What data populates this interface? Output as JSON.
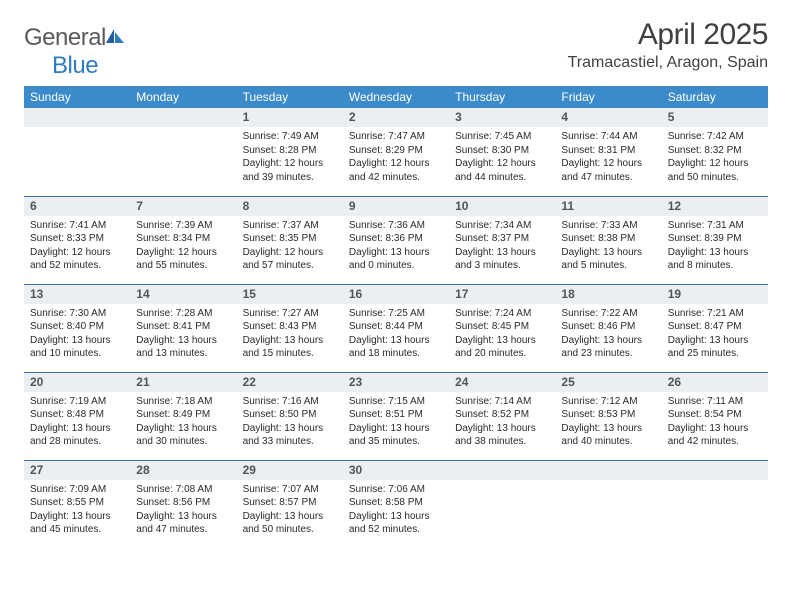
{
  "logo": {
    "word1": "General",
    "word2": "Blue"
  },
  "title": "April 2025",
  "location": "Tramacastiel, Aragon, Spain",
  "colors": {
    "header_bg": "#3b8bca",
    "header_text": "#ffffff",
    "daynum_bg": "#eceff1",
    "rule": "#2f6ea8",
    "logo_gray": "#5a5a5a",
    "logo_blue": "#2f7bbf"
  },
  "day_labels": [
    "Sunday",
    "Monday",
    "Tuesday",
    "Wednesday",
    "Thursday",
    "Friday",
    "Saturday"
  ],
  "weeks": [
    [
      null,
      null,
      {
        "n": "1",
        "sr": "Sunrise: 7:49 AM",
        "ss": "Sunset: 8:28 PM",
        "dl1": "Daylight: 12 hours",
        "dl2": "and 39 minutes."
      },
      {
        "n": "2",
        "sr": "Sunrise: 7:47 AM",
        "ss": "Sunset: 8:29 PM",
        "dl1": "Daylight: 12 hours",
        "dl2": "and 42 minutes."
      },
      {
        "n": "3",
        "sr": "Sunrise: 7:45 AM",
        "ss": "Sunset: 8:30 PM",
        "dl1": "Daylight: 12 hours",
        "dl2": "and 44 minutes."
      },
      {
        "n": "4",
        "sr": "Sunrise: 7:44 AM",
        "ss": "Sunset: 8:31 PM",
        "dl1": "Daylight: 12 hours",
        "dl2": "and 47 minutes."
      },
      {
        "n": "5",
        "sr": "Sunrise: 7:42 AM",
        "ss": "Sunset: 8:32 PM",
        "dl1": "Daylight: 12 hours",
        "dl2": "and 50 minutes."
      }
    ],
    [
      {
        "n": "6",
        "sr": "Sunrise: 7:41 AM",
        "ss": "Sunset: 8:33 PM",
        "dl1": "Daylight: 12 hours",
        "dl2": "and 52 minutes."
      },
      {
        "n": "7",
        "sr": "Sunrise: 7:39 AM",
        "ss": "Sunset: 8:34 PM",
        "dl1": "Daylight: 12 hours",
        "dl2": "and 55 minutes."
      },
      {
        "n": "8",
        "sr": "Sunrise: 7:37 AM",
        "ss": "Sunset: 8:35 PM",
        "dl1": "Daylight: 12 hours",
        "dl2": "and 57 minutes."
      },
      {
        "n": "9",
        "sr": "Sunrise: 7:36 AM",
        "ss": "Sunset: 8:36 PM",
        "dl1": "Daylight: 13 hours",
        "dl2": "and 0 minutes."
      },
      {
        "n": "10",
        "sr": "Sunrise: 7:34 AM",
        "ss": "Sunset: 8:37 PM",
        "dl1": "Daylight: 13 hours",
        "dl2": "and 3 minutes."
      },
      {
        "n": "11",
        "sr": "Sunrise: 7:33 AM",
        "ss": "Sunset: 8:38 PM",
        "dl1": "Daylight: 13 hours",
        "dl2": "and 5 minutes."
      },
      {
        "n": "12",
        "sr": "Sunrise: 7:31 AM",
        "ss": "Sunset: 8:39 PM",
        "dl1": "Daylight: 13 hours",
        "dl2": "and 8 minutes."
      }
    ],
    [
      {
        "n": "13",
        "sr": "Sunrise: 7:30 AM",
        "ss": "Sunset: 8:40 PM",
        "dl1": "Daylight: 13 hours",
        "dl2": "and 10 minutes."
      },
      {
        "n": "14",
        "sr": "Sunrise: 7:28 AM",
        "ss": "Sunset: 8:41 PM",
        "dl1": "Daylight: 13 hours",
        "dl2": "and 13 minutes."
      },
      {
        "n": "15",
        "sr": "Sunrise: 7:27 AM",
        "ss": "Sunset: 8:43 PM",
        "dl1": "Daylight: 13 hours",
        "dl2": "and 15 minutes."
      },
      {
        "n": "16",
        "sr": "Sunrise: 7:25 AM",
        "ss": "Sunset: 8:44 PM",
        "dl1": "Daylight: 13 hours",
        "dl2": "and 18 minutes."
      },
      {
        "n": "17",
        "sr": "Sunrise: 7:24 AM",
        "ss": "Sunset: 8:45 PM",
        "dl1": "Daylight: 13 hours",
        "dl2": "and 20 minutes."
      },
      {
        "n": "18",
        "sr": "Sunrise: 7:22 AM",
        "ss": "Sunset: 8:46 PM",
        "dl1": "Daylight: 13 hours",
        "dl2": "and 23 minutes."
      },
      {
        "n": "19",
        "sr": "Sunrise: 7:21 AM",
        "ss": "Sunset: 8:47 PM",
        "dl1": "Daylight: 13 hours",
        "dl2": "and 25 minutes."
      }
    ],
    [
      {
        "n": "20",
        "sr": "Sunrise: 7:19 AM",
        "ss": "Sunset: 8:48 PM",
        "dl1": "Daylight: 13 hours",
        "dl2": "and 28 minutes."
      },
      {
        "n": "21",
        "sr": "Sunrise: 7:18 AM",
        "ss": "Sunset: 8:49 PM",
        "dl1": "Daylight: 13 hours",
        "dl2": "and 30 minutes."
      },
      {
        "n": "22",
        "sr": "Sunrise: 7:16 AM",
        "ss": "Sunset: 8:50 PM",
        "dl1": "Daylight: 13 hours",
        "dl2": "and 33 minutes."
      },
      {
        "n": "23",
        "sr": "Sunrise: 7:15 AM",
        "ss": "Sunset: 8:51 PM",
        "dl1": "Daylight: 13 hours",
        "dl2": "and 35 minutes."
      },
      {
        "n": "24",
        "sr": "Sunrise: 7:14 AM",
        "ss": "Sunset: 8:52 PM",
        "dl1": "Daylight: 13 hours",
        "dl2": "and 38 minutes."
      },
      {
        "n": "25",
        "sr": "Sunrise: 7:12 AM",
        "ss": "Sunset: 8:53 PM",
        "dl1": "Daylight: 13 hours",
        "dl2": "and 40 minutes."
      },
      {
        "n": "26",
        "sr": "Sunrise: 7:11 AM",
        "ss": "Sunset: 8:54 PM",
        "dl1": "Daylight: 13 hours",
        "dl2": "and 42 minutes."
      }
    ],
    [
      {
        "n": "27",
        "sr": "Sunrise: 7:09 AM",
        "ss": "Sunset: 8:55 PM",
        "dl1": "Daylight: 13 hours",
        "dl2": "and 45 minutes."
      },
      {
        "n": "28",
        "sr": "Sunrise: 7:08 AM",
        "ss": "Sunset: 8:56 PM",
        "dl1": "Daylight: 13 hours",
        "dl2": "and 47 minutes."
      },
      {
        "n": "29",
        "sr": "Sunrise: 7:07 AM",
        "ss": "Sunset: 8:57 PM",
        "dl1": "Daylight: 13 hours",
        "dl2": "and 50 minutes."
      },
      {
        "n": "30",
        "sr": "Sunrise: 7:06 AM",
        "ss": "Sunset: 8:58 PM",
        "dl1": "Daylight: 13 hours",
        "dl2": "and 52 minutes."
      },
      null,
      null,
      null
    ]
  ]
}
